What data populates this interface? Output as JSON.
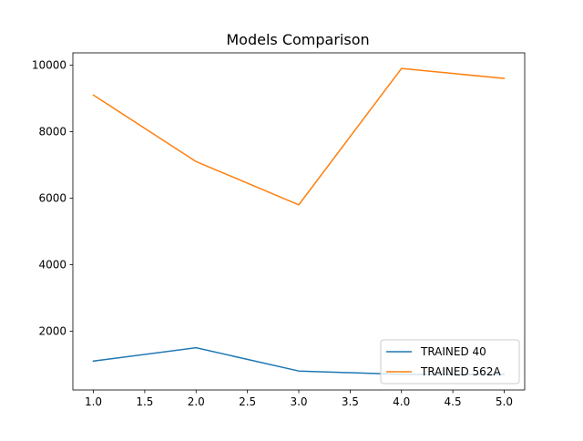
{
  "chart_data": {
    "type": "line",
    "title": "Models Comparison",
    "xlabel": "",
    "ylabel": "",
    "x": [
      1.0,
      2.0,
      3.0,
      4.0,
      5.0
    ],
    "xlim": [
      0.8,
      5.2
    ],
    "ylim": [
      230,
      10370
    ],
    "x_ticks": [
      1.0,
      1.5,
      2.0,
      2.5,
      3.0,
      3.5,
      4.0,
      4.5,
      5.0
    ],
    "x_tick_labels": [
      "1.0",
      "1.5",
      "2.0",
      "2.5",
      "3.0",
      "3.5",
      "4.0",
      "4.5",
      "5.0"
    ],
    "y_ticks": [
      2000,
      4000,
      6000,
      8000,
      10000
    ],
    "y_tick_labels": [
      "2000",
      "4000",
      "6000",
      "8000",
      "10000"
    ],
    "grid": false,
    "legend_position": "lower-right",
    "series": [
      {
        "name": "TRAINED 40",
        "color": "#1f77b4",
        "values": [
          1100,
          1500,
          800,
          700,
          700
        ]
      },
      {
        "name": "TRAINED 562A",
        "color": "#ff7f0e",
        "values": [
          9100,
          7100,
          5800,
          9900,
          9600
        ]
      }
    ]
  }
}
